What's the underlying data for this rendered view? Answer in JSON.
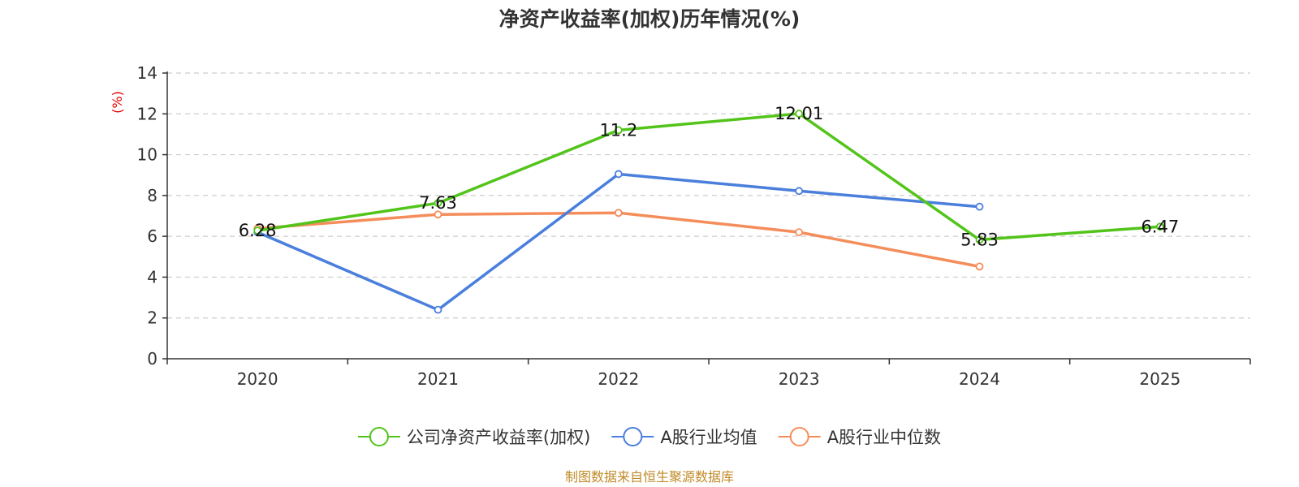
{
  "chart_data": {
    "type": "line",
    "title": "净资产收益率(加权)历年情况(%)",
    "ylabel": "(%)",
    "xlabel": "",
    "ylim": [
      0,
      14
    ],
    "yticks": [
      0,
      2,
      4,
      6,
      8,
      10,
      12,
      14
    ],
    "categories": [
      "2020",
      "2021",
      "2022",
      "2023",
      "2024",
      "2025"
    ],
    "grid": true,
    "legend_position": "bottom-center",
    "series": [
      {
        "name": "公司净资产收益率(加权)",
        "color": "#52c41a",
        "values": [
          6.28,
          7.63,
          11.2,
          12.01,
          5.83,
          6.47
        ],
        "labels": [
          "6.28",
          "7.63",
          "11.2",
          "12.01",
          "5.83",
          "6.47"
        ],
        "show_labels": true
      },
      {
        "name": "A股行业均值",
        "color": "#4a7fdc",
        "values": [
          6.2,
          2.4,
          9.05,
          8.22,
          7.45,
          null
        ],
        "show_labels": false
      },
      {
        "name": "A股行业中位数",
        "color": "#f58d5b",
        "values": [
          6.38,
          7.07,
          7.15,
          6.2,
          4.52,
          null
        ],
        "show_labels": false
      }
    ],
    "source": "制图数据来自恒生聚源数据库",
    "colors": {
      "title": "#333333",
      "ylabel": "#e60000",
      "source": "#c08a28",
      "axis": "#333333",
      "grid": "#cccccc"
    }
  }
}
